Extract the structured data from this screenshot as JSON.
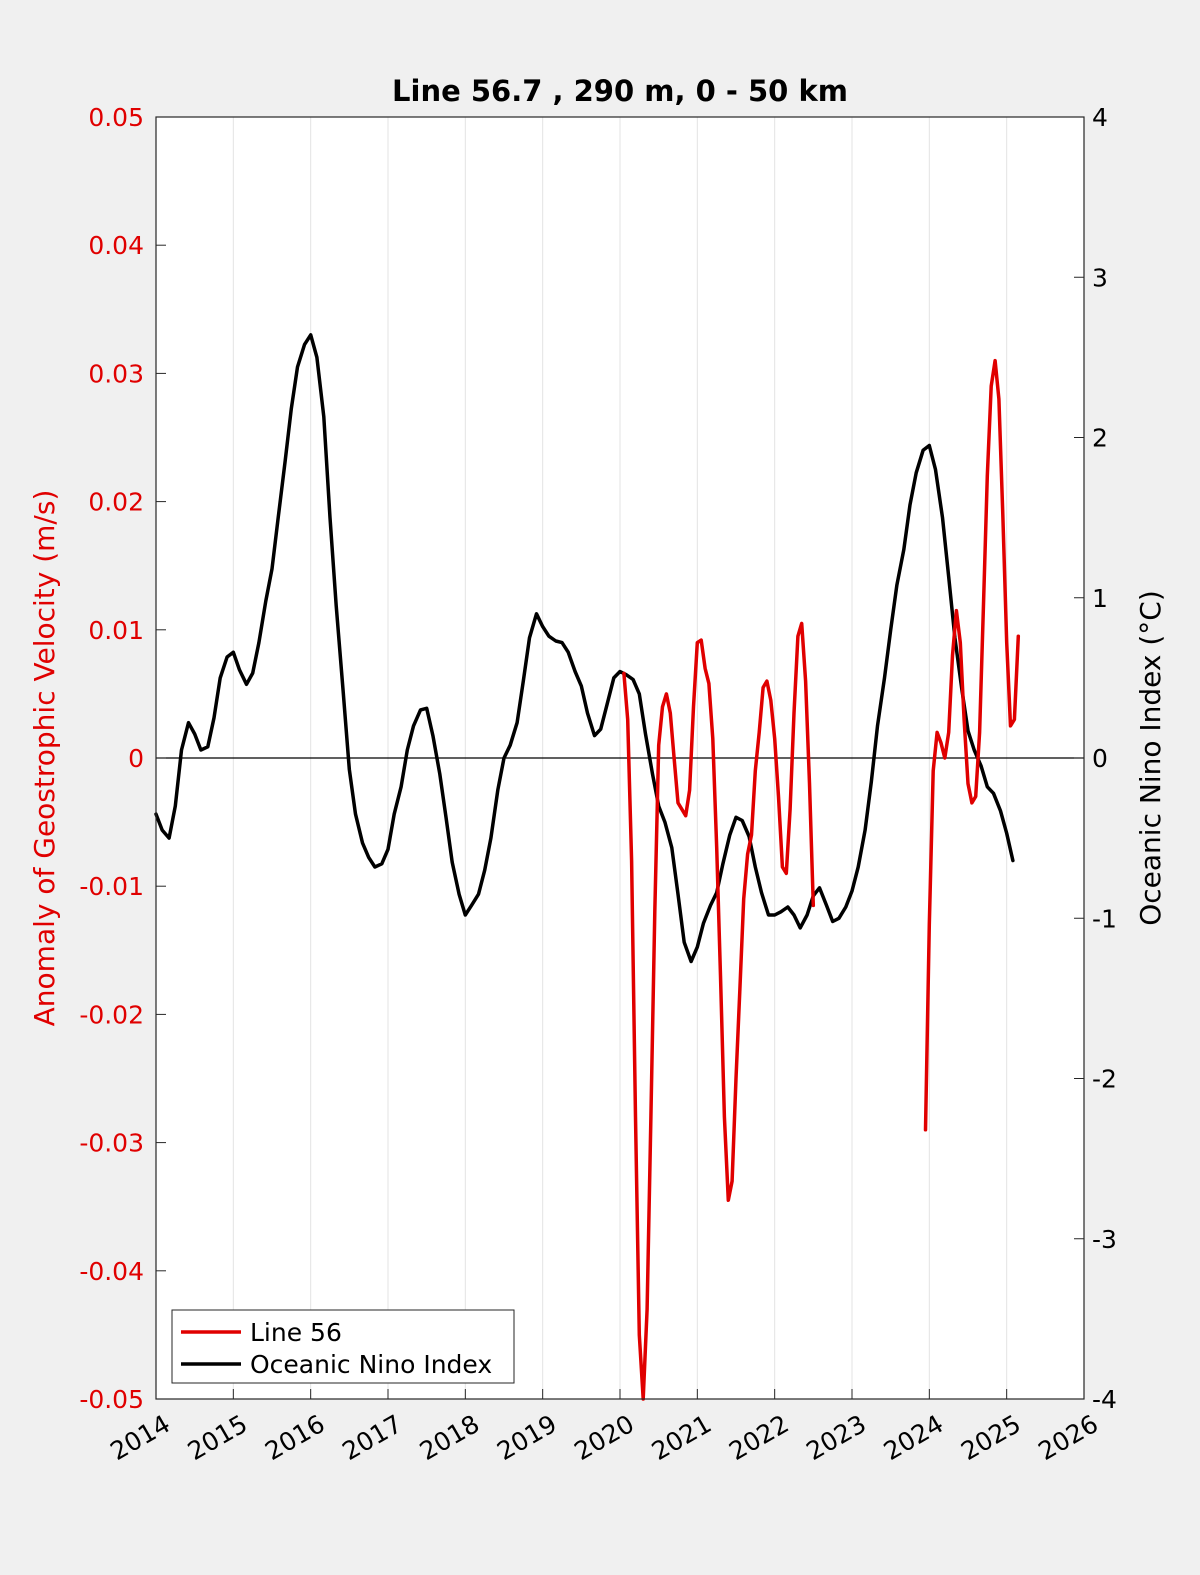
{
  "chart_data": {
    "type": "line",
    "title": "Line 56.7 , 290 m, 0 - 50 km",
    "ylabel_left": "Anomaly of Geostrophic Velocity (m/s)",
    "ylabel_right": "Oceanic Nino Index (°C)",
    "xlim": [
      2014,
      2026
    ],
    "ylim_left": [
      -0.05,
      0.05
    ],
    "ylim_right": [
      -4,
      4
    ],
    "x_ticks": [
      "2014",
      "2015",
      "2016",
      "2017",
      "2018",
      "2019",
      "2020",
      "2021",
      "2022",
      "2023",
      "2024",
      "2025",
      "2026"
    ],
    "y_left_ticks": [
      "0.05",
      "0.04",
      "0.03",
      "0.02",
      "0.01",
      "0",
      "-0.01",
      "-0.02",
      "-0.03",
      "-0.04",
      "-0.05"
    ],
    "y_right_ticks": [
      "4",
      "3",
      "2",
      "1",
      "0",
      "-1",
      "-2",
      "-3",
      "-4"
    ],
    "grid": "vertical",
    "legend_placement": "bottom-left",
    "series": [
      {
        "name": "Line 56",
        "axis": "left",
        "color": "#e00000",
        "segments": [
          [
            [
              2020.05,
              0.0066
            ],
            [
              2020.1,
              0.003
            ],
            [
              2020.15,
              -0.008
            ],
            [
              2020.2,
              -0.028
            ],
            [
              2020.25,
              -0.045
            ],
            [
              2020.3,
              -0.05
            ],
            [
              2020.35,
              -0.043
            ],
            [
              2020.4,
              -0.028
            ],
            [
              2020.45,
              -0.012
            ],
            [
              2020.5,
              0.001
            ],
            [
              2020.55,
              0.004
            ],
            [
              2020.6,
              0.005
            ],
            [
              2020.65,
              0.0035
            ],
            [
              2020.7,
              0.0
            ],
            [
              2020.75,
              -0.0035
            ],
            [
              2020.8,
              -0.004
            ],
            [
              2020.85,
              -0.0045
            ],
            [
              2020.9,
              -0.0025
            ],
            [
              2020.95,
              0.004
            ],
            [
              2021.0,
              0.009
            ],
            [
              2021.05,
              0.0092
            ],
            [
              2021.1,
              0.007
            ],
            [
              2021.15,
              0.0058
            ],
            [
              2021.2,
              0.0015
            ],
            [
              2021.25,
              -0.007
            ],
            [
              2021.3,
              -0.017
            ],
            [
              2021.35,
              -0.028
            ],
            [
              2021.4,
              -0.0345
            ],
            [
              2021.45,
              -0.033
            ],
            [
              2021.5,
              -0.025
            ],
            [
              2021.55,
              -0.018
            ],
            [
              2021.6,
              -0.011
            ],
            [
              2021.65,
              -0.0075
            ],
            [
              2021.7,
              -0.006
            ],
            [
              2021.75,
              -0.001
            ],
            [
              2021.8,
              0.002
            ],
            [
              2021.85,
              0.0055
            ],
            [
              2021.9,
              0.006
            ],
            [
              2021.95,
              0.0045
            ],
            [
              2022.0,
              0.0015
            ],
            [
              2022.05,
              -0.003
            ],
            [
              2022.1,
              -0.0085
            ],
            [
              2022.15,
              -0.009
            ],
            [
              2022.2,
              -0.004
            ],
            [
              2022.25,
              0.0035
            ],
            [
              2022.3,
              0.0095
            ],
            [
              2022.35,
              0.0105
            ],
            [
              2022.4,
              0.006
            ],
            [
              2022.45,
              -0.002
            ],
            [
              2022.5,
              -0.0115
            ]
          ],
          [
            [
              2023.95,
              -0.029
            ],
            [
              2024.0,
              -0.013
            ],
            [
              2024.05,
              -0.001
            ],
            [
              2024.1,
              0.002
            ],
            [
              2024.15,
              0.0012
            ],
            [
              2024.2,
              0.0
            ],
            [
              2024.25,
              0.002
            ],
            [
              2024.3,
              0.008
            ],
            [
              2024.35,
              0.0115
            ],
            [
              2024.4,
              0.009
            ],
            [
              2024.45,
              0.003
            ],
            [
              2024.5,
              -0.002
            ],
            [
              2024.55,
              -0.0035
            ],
            [
              2024.6,
              -0.003
            ],
            [
              2024.65,
              0.002
            ],
            [
              2024.7,
              0.012
            ],
            [
              2024.75,
              0.022
            ],
            [
              2024.8,
              0.029
            ],
            [
              2024.85,
              0.031
            ],
            [
              2024.9,
              0.028
            ],
            [
              2024.95,
              0.019
            ],
            [
              2025.0,
              0.009
            ],
            [
              2025.05,
              0.0025
            ],
            [
              2025.1,
              0.003
            ],
            [
              2025.15,
              0.0095
            ]
          ]
        ]
      },
      {
        "name": "Oceanic Nino Index",
        "axis": "right",
        "color": "#000000",
        "segments": [
          [
            [
              2014.0,
              -0.35
            ],
            [
              2014.08,
              -0.45
            ],
            [
              2014.17,
              -0.5
            ],
            [
              2014.25,
              -0.3
            ],
            [
              2014.33,
              0.05
            ],
            [
              2014.42,
              0.22
            ],
            [
              2014.5,
              0.15
            ],
            [
              2014.58,
              0.05
            ],
            [
              2014.67,
              0.07
            ],
            [
              2014.75,
              0.25
            ],
            [
              2014.83,
              0.5
            ],
            [
              2014.92,
              0.63
            ],
            [
              2015.0,
              0.66
            ],
            [
              2015.08,
              0.55
            ],
            [
              2015.17,
              0.46
            ],
            [
              2015.25,
              0.53
            ],
            [
              2015.33,
              0.72
            ],
            [
              2015.42,
              0.98
            ],
            [
              2015.5,
              1.18
            ],
            [
              2015.58,
              1.5
            ],
            [
              2015.67,
              1.85
            ],
            [
              2015.75,
              2.18
            ],
            [
              2015.83,
              2.44
            ],
            [
              2015.92,
              2.58
            ],
            [
              2016.0,
              2.64
            ],
            [
              2016.08,
              2.5
            ],
            [
              2016.17,
              2.13
            ],
            [
              2016.25,
              1.5
            ],
            [
              2016.33,
              0.95
            ],
            [
              2016.42,
              0.42
            ],
            [
              2016.5,
              -0.07
            ],
            [
              2016.58,
              -0.35
            ],
            [
              2016.67,
              -0.53
            ],
            [
              2016.75,
              -0.62
            ],
            [
              2016.83,
              -0.68
            ],
            [
              2016.92,
              -0.66
            ],
            [
              2017.0,
              -0.57
            ],
            [
              2017.08,
              -0.35
            ],
            [
              2017.17,
              -0.18
            ],
            [
              2017.25,
              0.05
            ],
            [
              2017.33,
              0.2
            ],
            [
              2017.42,
              0.3
            ],
            [
              2017.5,
              0.31
            ],
            [
              2017.58,
              0.14
            ],
            [
              2017.67,
              -0.1
            ],
            [
              2017.75,
              -0.37
            ],
            [
              2017.83,
              -0.65
            ],
            [
              2017.92,
              -0.85
            ],
            [
              2018.0,
              -0.98
            ],
            [
              2018.08,
              -0.92
            ],
            [
              2018.17,
              -0.85
            ],
            [
              2018.25,
              -0.7
            ],
            [
              2018.33,
              -0.5
            ],
            [
              2018.42,
              -0.2
            ],
            [
              2018.5,
              0.0
            ],
            [
              2018.58,
              0.08
            ],
            [
              2018.67,
              0.22
            ],
            [
              2018.75,
              0.48
            ],
            [
              2018.83,
              0.75
            ],
            [
              2018.92,
              0.9
            ],
            [
              2019.0,
              0.82
            ],
            [
              2019.08,
              0.76
            ],
            [
              2019.17,
              0.73
            ],
            [
              2019.25,
              0.72
            ],
            [
              2019.33,
              0.66
            ],
            [
              2019.42,
              0.54
            ],
            [
              2019.5,
              0.45
            ],
            [
              2019.58,
              0.28
            ],
            [
              2019.67,
              0.14
            ],
            [
              2019.75,
              0.18
            ],
            [
              2019.83,
              0.33
            ],
            [
              2019.92,
              0.5
            ],
            [
              2020.0,
              0.54
            ],
            [
              2020.08,
              0.52
            ],
            [
              2020.17,
              0.49
            ],
            [
              2020.25,
              0.4
            ],
            [
              2020.33,
              0.15
            ],
            [
              2020.42,
              -0.1
            ],
            [
              2020.5,
              -0.3
            ],
            [
              2020.58,
              -0.4
            ],
            [
              2020.67,
              -0.56
            ],
            [
              2020.75,
              -0.85
            ],
            [
              2020.83,
              -1.15
            ],
            [
              2020.92,
              -1.27
            ],
            [
              2021.0,
              -1.18
            ],
            [
              2021.08,
              -1.03
            ],
            [
              2021.17,
              -0.92
            ],
            [
              2021.25,
              -0.84
            ],
            [
              2021.33,
              -0.66
            ],
            [
              2021.42,
              -0.48
            ],
            [
              2021.5,
              -0.37
            ],
            [
              2021.58,
              -0.39
            ],
            [
              2021.67,
              -0.49
            ],
            [
              2021.75,
              -0.68
            ],
            [
              2021.83,
              -0.84
            ],
            [
              2021.92,
              -0.98
            ],
            [
              2022.0,
              -0.98
            ],
            [
              2022.08,
              -0.96
            ],
            [
              2022.17,
              -0.93
            ],
            [
              2022.25,
              -0.98
            ],
            [
              2022.33,
              -1.06
            ],
            [
              2022.42,
              -0.98
            ],
            [
              2022.5,
              -0.86
            ],
            [
              2022.58,
              -0.81
            ],
            [
              2022.67,
              -0.92
            ],
            [
              2022.75,
              -1.02
            ],
            [
              2022.83,
              -1.0
            ],
            [
              2022.92,
              -0.93
            ],
            [
              2023.0,
              -0.83
            ],
            [
              2023.08,
              -0.68
            ],
            [
              2023.17,
              -0.45
            ],
            [
              2023.25,
              -0.15
            ],
            [
              2023.33,
              0.2
            ],
            [
              2023.42,
              0.5
            ],
            [
              2023.5,
              0.8
            ],
            [
              2023.58,
              1.08
            ],
            [
              2023.67,
              1.3
            ],
            [
              2023.75,
              1.58
            ],
            [
              2023.83,
              1.78
            ],
            [
              2023.92,
              1.92
            ],
            [
              2024.0,
              1.95
            ],
            [
              2024.08,
              1.8
            ],
            [
              2024.17,
              1.5
            ],
            [
              2024.25,
              1.13
            ],
            [
              2024.33,
              0.75
            ],
            [
              2024.42,
              0.43
            ],
            [
              2024.5,
              0.17
            ],
            [
              2024.58,
              0.05
            ],
            [
              2024.67,
              -0.05
            ],
            [
              2024.75,
              -0.18
            ],
            [
              2024.83,
              -0.22
            ],
            [
              2024.92,
              -0.33
            ],
            [
              2025.0,
              -0.47
            ],
            [
              2025.08,
              -0.64
            ]
          ]
        ]
      }
    ]
  }
}
